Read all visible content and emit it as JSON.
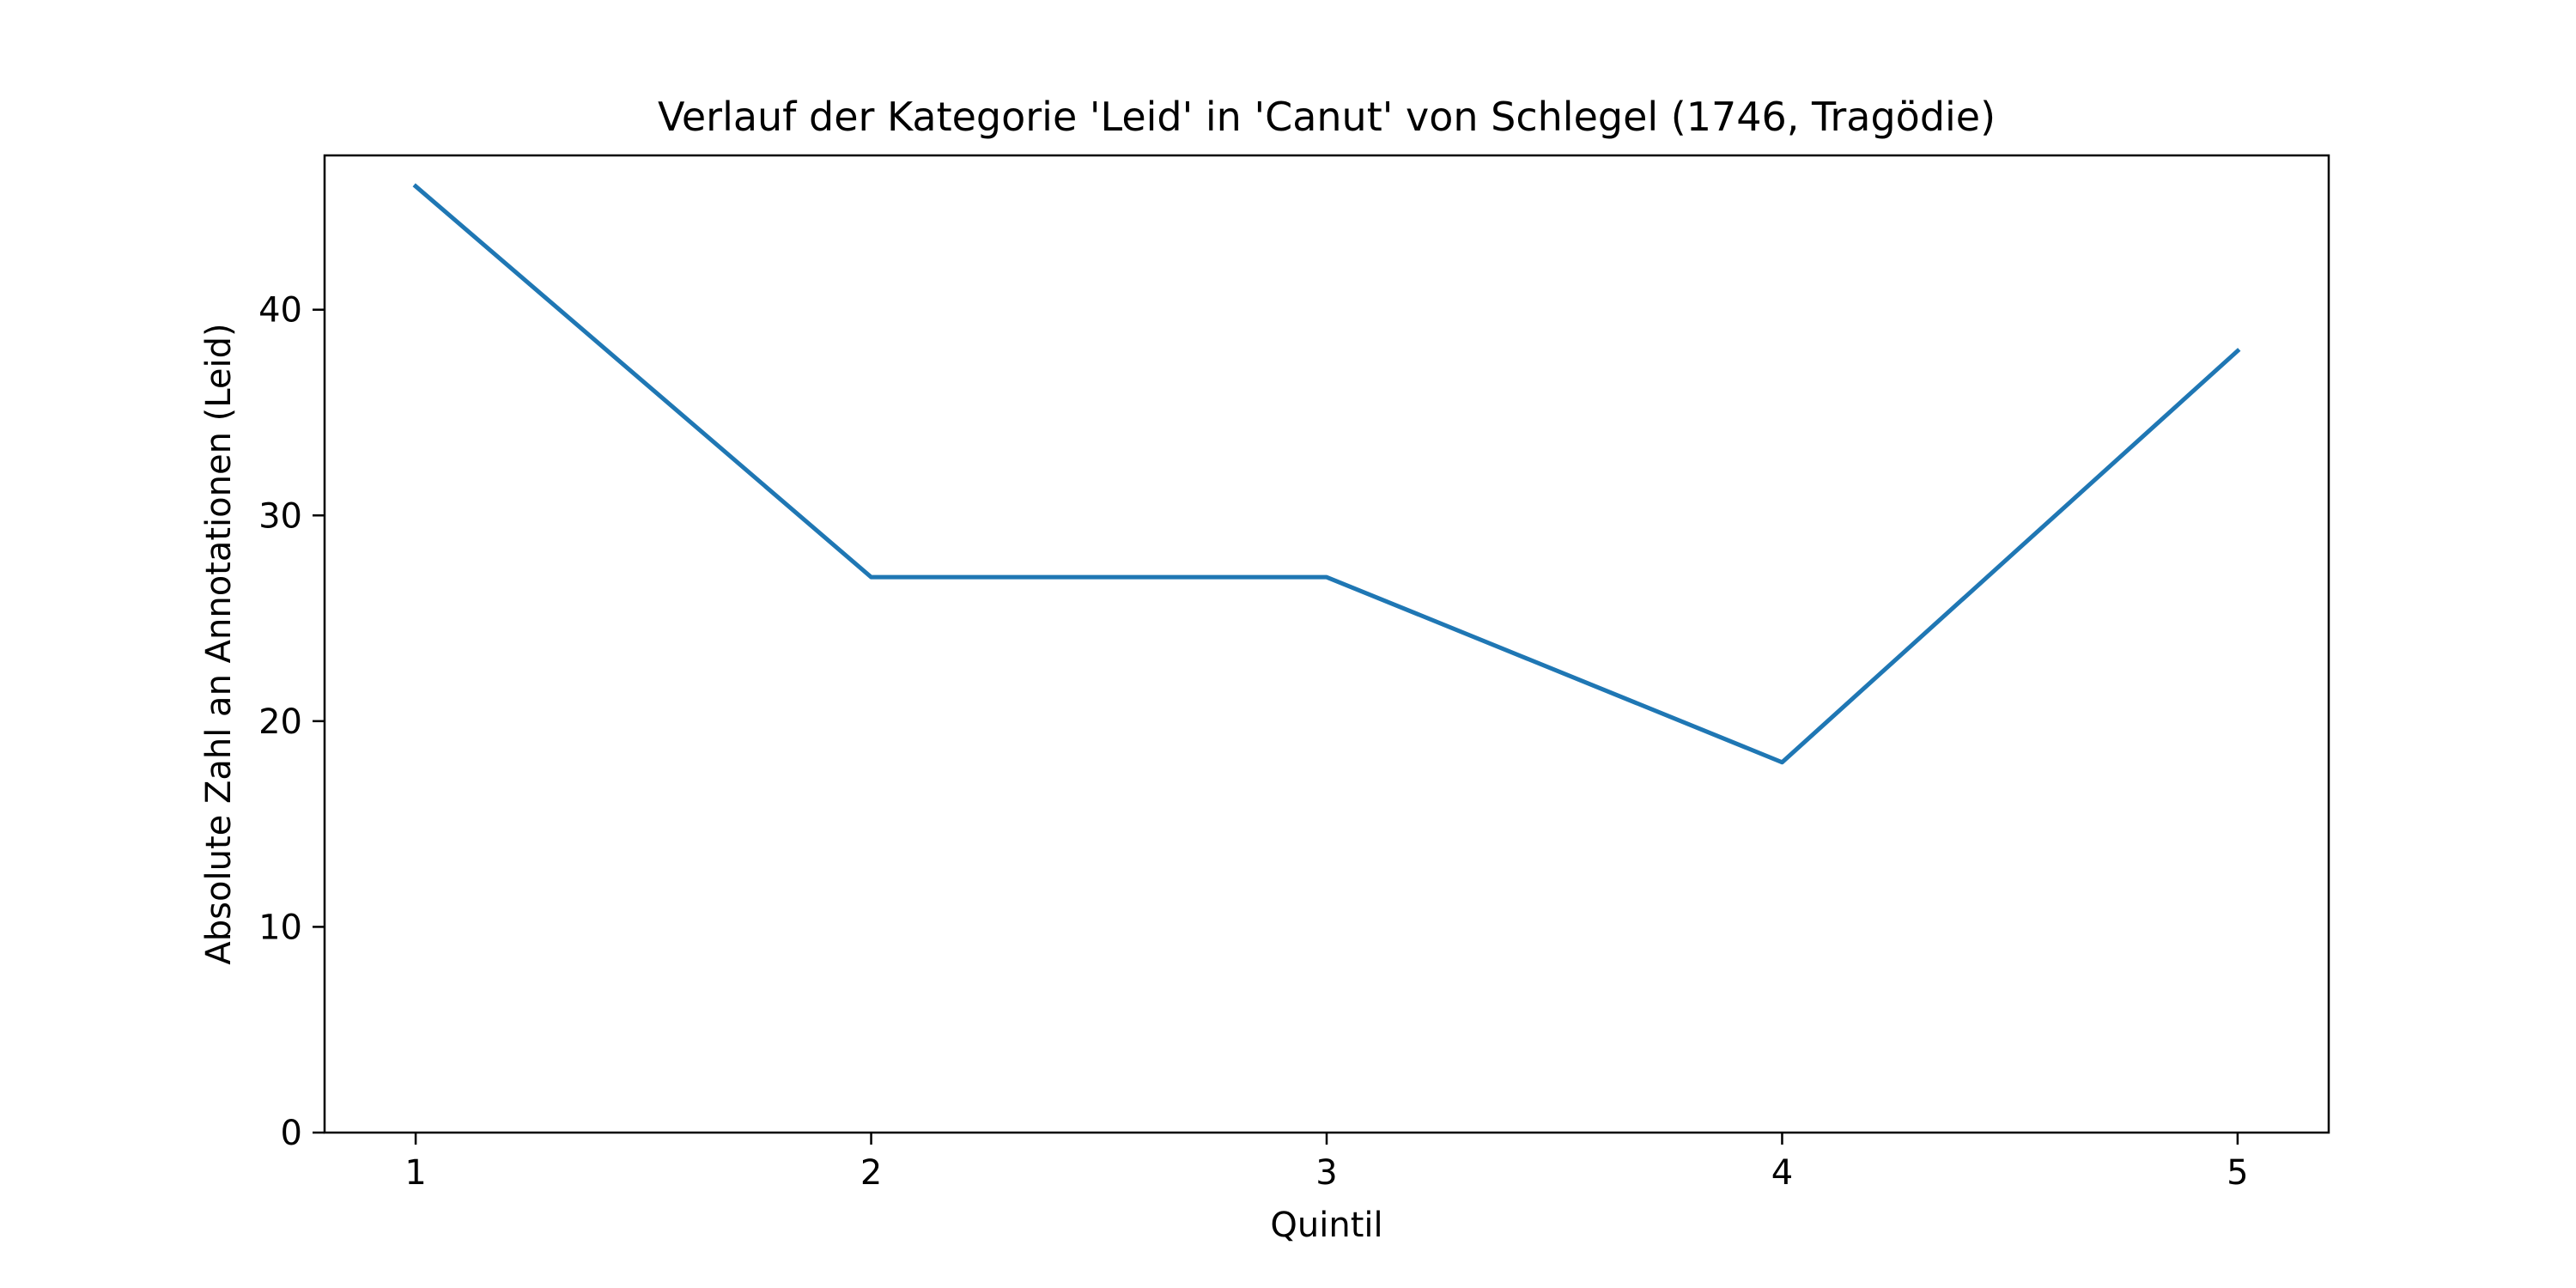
{
  "chart_data": {
    "type": "line",
    "title": "Verlauf der Kategorie 'Leid' in 'Canut' von Schlegel (1746, Tragödie)",
    "xlabel": "Quintil",
    "ylabel": "Absolute Zahl an Annotationen (Leid)",
    "x": [
      1,
      2,
      3,
      4,
      5
    ],
    "series": [
      {
        "values": [
          46,
          27,
          27,
          18,
          38
        ]
      }
    ],
    "xlim": [
      0.8,
      5.2
    ],
    "ylim": [
      0,
      47.5
    ],
    "xticks": [
      1,
      2,
      3,
      4,
      5
    ],
    "yticks": [
      0,
      10,
      20,
      30,
      40
    ],
    "grid": false,
    "line_color": "#1f77b4"
  }
}
